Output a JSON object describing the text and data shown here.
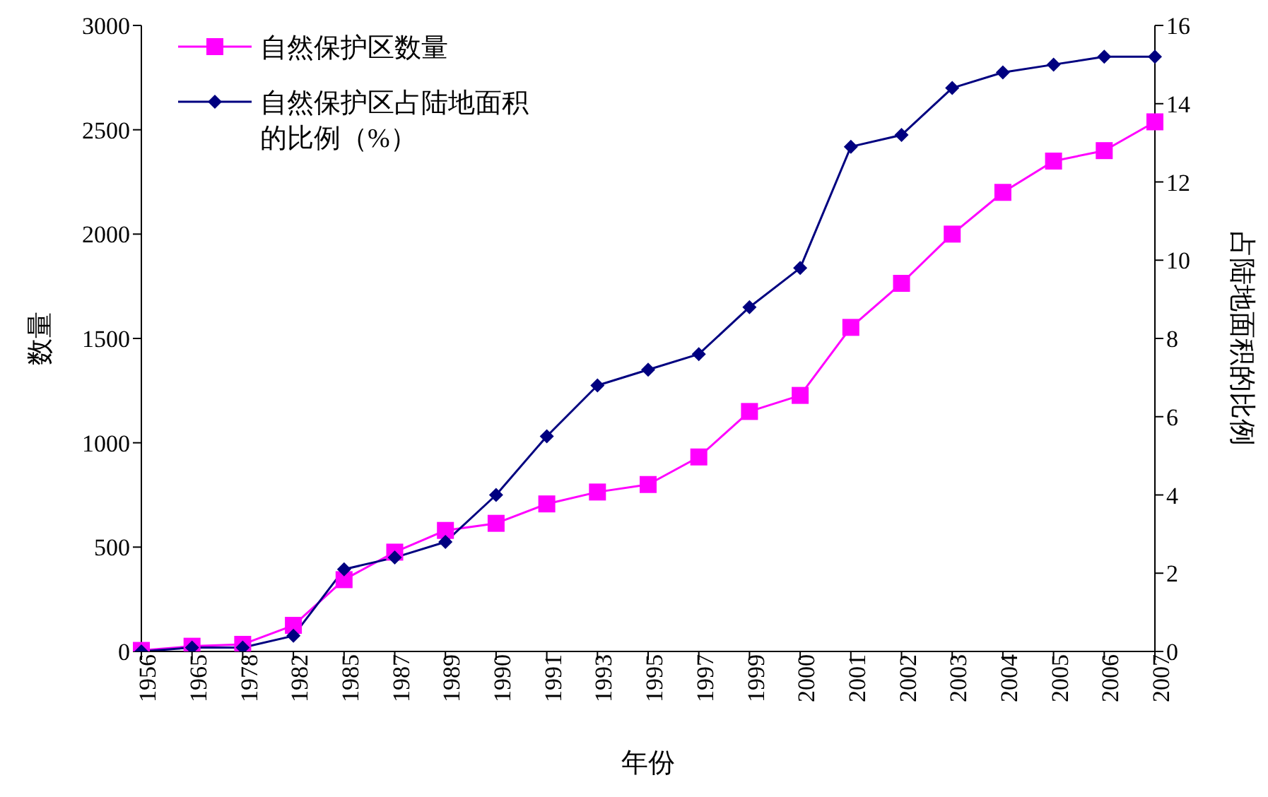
{
  "chart_data": {
    "type": "line",
    "xlabel": "年份",
    "ylabel": "数量",
    "y2label": "占陆地面积的比例",
    "categories": [
      "1956",
      "1965",
      "1978",
      "1982",
      "1985",
      "1987",
      "1989",
      "1990",
      "1991",
      "1993",
      "1995",
      "1997",
      "1999",
      "2000",
      "2001",
      "2002",
      "2003",
      "2004",
      "2005",
      "2006",
      "2007"
    ],
    "series": [
      {
        "name": "自然保护区数量",
        "color": "#ff00ff",
        "marker": "square",
        "values": [
          5,
          25,
          34,
          125,
          344,
          476,
          580,
          614,
          707,
          764,
          800,
          932,
          1150,
          1227,
          1553,
          1764,
          2000,
          2200,
          2350,
          2400,
          2538
        ]
      },
      {
        "name": "自然保护区占陆地面积的比例（%）",
        "color": "#000080",
        "marker": "diamond",
        "axis": "y2",
        "values": [
          0,
          0.1,
          0.1,
          0.4,
          2.1,
          2.4,
          2.8,
          4.0,
          5.5,
          6.8,
          7.2,
          7.6,
          8.8,
          9.8,
          12.9,
          13.2,
          14.4,
          14.8,
          15.0,
          15.2,
          15.2
        ]
      }
    ],
    "ylim": [
      0,
      3000
    ],
    "yticks": [
      0,
      500,
      1000,
      1500,
      2000,
      2500,
      3000
    ],
    "y2lim": [
      0,
      16
    ],
    "y2ticks": [
      0,
      2,
      4,
      6,
      8,
      10,
      12,
      14,
      16
    ],
    "grid": false,
    "legend": "top left",
    "line_style": "solid"
  }
}
